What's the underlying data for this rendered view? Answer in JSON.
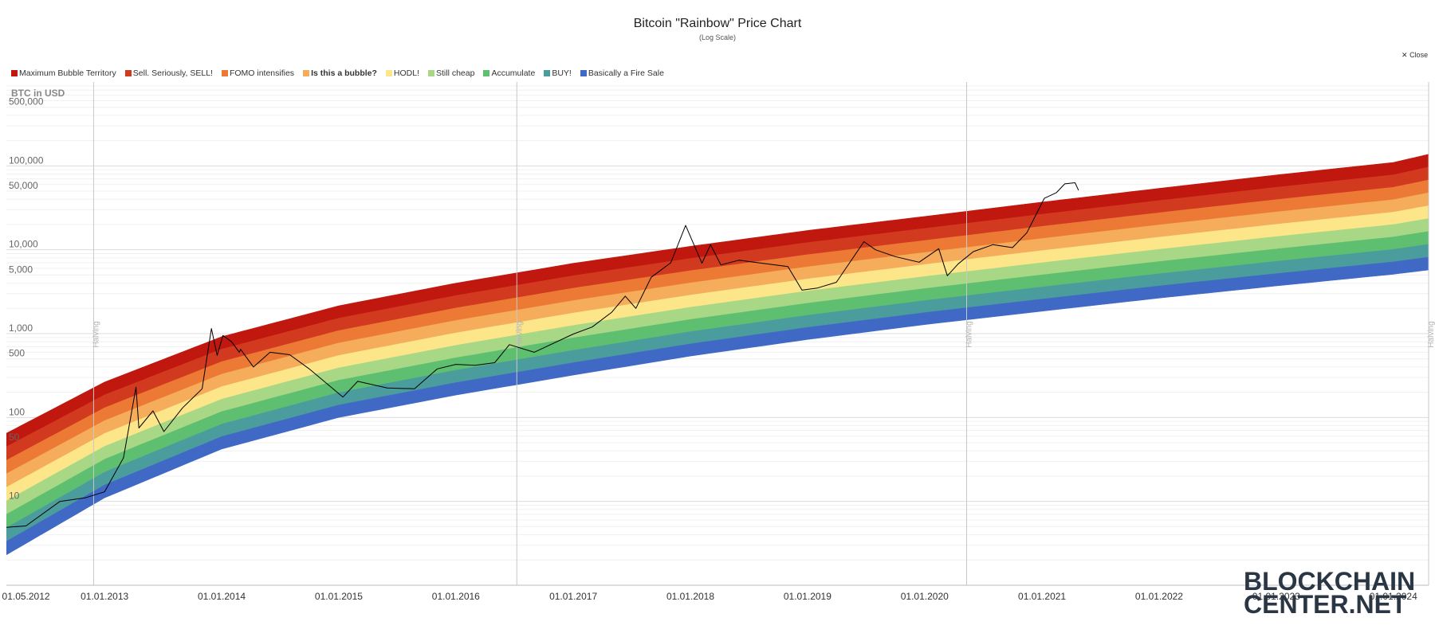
{
  "chart_data": {
    "type": "line",
    "title": "Bitcoin \"Rainbow\" Price Chart",
    "subtitle": "(Log Scale)",
    "ylabel": "BTC in USD",
    "yscale": "log",
    "ylim": [
      1,
      1000000
    ],
    "xlim": [
      "2012-03-01",
      "2024-04-20"
    ],
    "y_tick_labels": [
      "10",
      "50",
      "100",
      "500",
      "1,000",
      "5,000",
      "10,000",
      "50,000",
      "100,000",
      "500,000"
    ],
    "x_tick_labels": [
      "01.05.2012",
      "01.01.2013",
      "01.01.2014",
      "01.01.2015",
      "01.01.2016",
      "01.01.2017",
      "01.01.2018",
      "01.01.2019",
      "01.01.2020",
      "01.01.2021",
      "01.01.2022",
      "01.01.2023",
      "01.01.2024"
    ],
    "halvings": [
      {
        "date": "2012-11-28",
        "label": "Halving"
      },
      {
        "date": "2016-07-09",
        "label": "Halving"
      },
      {
        "date": "2020-05-11",
        "label": "Halving"
      },
      {
        "date": "2024-04-20",
        "label": "Halving"
      }
    ],
    "bands": [
      {
        "name": "Maximum Bubble Territory",
        "color": "#c0170f"
      },
      {
        "name": "Sell. Seriously, SELL!",
        "color": "#d23a1f"
      },
      {
        "name": "FOMO intensifies",
        "color": "#ec7a35"
      },
      {
        "name": "Is this a bubble?",
        "color": "#f5ac5b"
      },
      {
        "name": "HODL!",
        "color": "#fde68a"
      },
      {
        "name": "Still cheap",
        "color": "#a8d885"
      },
      {
        "name": "Accumulate",
        "color": "#5fbf70"
      },
      {
        "name": "BUY!",
        "color": "#4a9d9c"
      },
      {
        "name": "Basically a Fire Sale",
        "color": "#4069c5"
      }
    ],
    "band_edges": {
      "dates": [
        "2012-03-01",
        "2013-01-01",
        "2014-01-01",
        "2015-01-01",
        "2016-01-01",
        "2017-01-01",
        "2018-01-01",
        "2019-01-01",
        "2020-01-01",
        "2021-01-01",
        "2022-01-01",
        "2023-01-01",
        "2024-01-01",
        "2024-06-01"
      ],
      "top": [
        65,
        265,
        920,
        2150,
        4000,
        6900,
        11000,
        17000,
        25000,
        37000,
        54000,
        78000,
        110000,
        150000
      ],
      "bottom": [
        2.3,
        11,
        42,
        100,
        185,
        320,
        540,
        850,
        1280,
        1850,
        2650,
        3700,
        5100,
        6000
      ]
    },
    "legend_position": "top-left",
    "grid": true,
    "series": [
      {
        "name": "BTC price",
        "color": "#000000",
        "x": [
          "2012-03-01",
          "2012-05-01",
          "2012-08-15",
          "2012-11-01",
          "2013-01-01",
          "2013-03-01",
          "2013-04-09",
          "2013-04-18",
          "2013-06-01",
          "2013-07-05",
          "2013-09-01",
          "2013-11-01",
          "2013-11-30",
          "2013-12-18",
          "2014-01-05",
          "2014-02-01",
          "2014-02-25",
          "2014-03-01",
          "2014-04-10",
          "2014-06-01",
          "2014-08-01",
          "2014-10-01",
          "2015-01-14",
          "2015-03-01",
          "2015-06-01",
          "2015-08-25",
          "2015-11-04",
          "2016-01-01",
          "2016-03-01",
          "2016-05-01",
          "2016-06-16",
          "2016-09-01",
          "2017-01-01",
          "2017-03-01",
          "2017-05-01",
          "2017-06-12",
          "2017-07-15",
          "2017-09-01",
          "2017-11-01",
          "2017-12-17",
          "2018-02-06",
          "2018-03-05",
          "2018-04-06",
          "2018-06-01",
          "2018-08-01",
          "2018-11-01",
          "2018-12-15",
          "2019-02-01",
          "2019-04-01",
          "2019-06-26",
          "2019-08-01",
          "2019-10-01",
          "2019-12-15",
          "2020-02-14",
          "2020-03-12",
          "2020-04-15",
          "2020-06-01",
          "2020-08-01",
          "2020-10-01",
          "2020-11-15",
          "2021-01-08",
          "2021-02-15",
          "2021-03-13",
          "2021-04-14",
          "2021-04-25"
        ],
        "y": [
          4.9,
          5.1,
          10,
          11,
          13,
          33,
          230,
          75,
          120,
          68,
          130,
          220,
          1150,
          550,
          950,
          800,
          600,
          650,
          400,
          600,
          560,
          380,
          175,
          270,
          225,
          220,
          380,
          430,
          420,
          450,
          740,
          600,
          990,
          1200,
          1800,
          2800,
          2000,
          4700,
          7000,
          19500,
          6900,
          11500,
          6600,
          7500,
          7000,
          6300,
          3300,
          3500,
          4100,
          12500,
          10000,
          8300,
          7100,
          10300,
          4900,
          6800,
          9500,
          11500,
          10600,
          16000,
          41000,
          48000,
          61000,
          63000,
          51000
        ]
      }
    ]
  },
  "ui": {
    "close_label": "Close",
    "close_icon": "✕",
    "watermark_lines": [
      "BLOCKCHAIN",
      "CENTER.NET"
    ]
  }
}
